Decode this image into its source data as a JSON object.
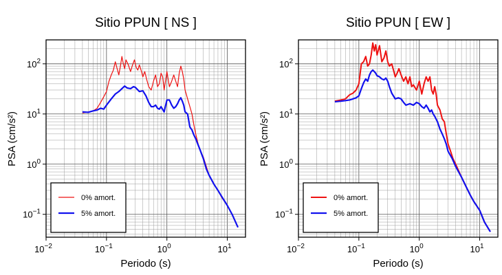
{
  "chart_data": [
    {
      "type": "line",
      "title": "Sitio PPUN [ NS ]",
      "xlabel": "Periodo (s)",
      "ylabel": "PSA (cm/s²)",
      "x_scale": "log",
      "y_scale": "log",
      "xlim": [
        0.01,
        20
      ],
      "ylim": [
        0.035,
        300
      ],
      "grid": true,
      "x_tick_labels": [
        {
          "value": 0.01,
          "base": "10",
          "exp": "−2"
        },
        {
          "value": 0.1,
          "base": "10",
          "exp": "−1"
        },
        {
          "value": 1,
          "base": "10",
          "exp": "0"
        },
        {
          "value": 10,
          "base": "10",
          "exp": "1"
        }
      ],
      "y_tick_labels": [
        {
          "value": 0.1,
          "base": "10",
          "exp": "−1"
        },
        {
          "value": 1,
          "base": "10",
          "exp": "0"
        },
        {
          "value": 10,
          "base": "10",
          "exp": "1"
        },
        {
          "value": 100,
          "base": "10",
          "exp": "2"
        }
      ],
      "legend_position": "bottom-left",
      "series": [
        {
          "name": "0% amort.",
          "color": "#ee1111",
          "stroke_width": 1.2,
          "points": [
            [
              0.04,
              10.5
            ],
            [
              0.05,
              11
            ],
            [
              0.06,
              11.5
            ],
            [
              0.07,
              13
            ],
            [
              0.08,
              17
            ],
            [
              0.09,
              22
            ],
            [
              0.1,
              28
            ],
            [
              0.11,
              45
            ],
            [
              0.12,
              60
            ],
            [
              0.13,
              75
            ],
            [
              0.14,
              110
            ],
            [
              0.15,
              80
            ],
            [
              0.16,
              60
            ],
            [
              0.17,
              90
            ],
            [
              0.18,
              140
            ],
            [
              0.19,
              100
            ],
            [
              0.2,
              80
            ],
            [
              0.21,
              120
            ],
            [
              0.23,
              95
            ],
            [
              0.25,
              70
            ],
            [
              0.27,
              95
            ],
            [
              0.29,
              120
            ],
            [
              0.31,
              85
            ],
            [
              0.33,
              75
            ],
            [
              0.35,
              95
            ],
            [
              0.38,
              70
            ],
            [
              0.4,
              55
            ],
            [
              0.43,
              70
            ],
            [
              0.46,
              50
            ],
            [
              0.5,
              35
            ],
            [
              0.55,
              30
            ],
            [
              0.6,
              45
            ],
            [
              0.65,
              60
            ],
            [
              0.7,
              35
            ],
            [
              0.75,
              40
            ],
            [
              0.8,
              65
            ],
            [
              0.85,
              55
            ],
            [
              0.9,
              30
            ],
            [
              1.0,
              70
            ],
            [
              1.1,
              35
            ],
            [
              1.2,
              45
            ],
            [
              1.3,
              60
            ],
            [
              1.4,
              45
            ],
            [
              1.5,
              35
            ],
            [
              1.6,
              65
            ],
            [
              1.7,
              90
            ],
            [
              1.8,
              70
            ],
            [
              1.9,
              50
            ],
            [
              2.0,
              30
            ],
            [
              2.2,
              20
            ],
            [
              2.4,
              14
            ],
            [
              2.6,
              10
            ],
            [
              2.8,
              6
            ],
            [
              3.0,
              4
            ],
            [
              3.3,
              2.5
            ],
            [
              3.6,
              1.8
            ],
            [
              4.0,
              1.4
            ],
            [
              5.0,
              0.6
            ],
            [
              6.0,
              0.4
            ],
            [
              7.0,
              0.3
            ],
            [
              8.0,
              0.22
            ],
            [
              10.0,
              0.15
            ],
            [
              12.0,
              0.1
            ],
            [
              15.0,
              0.055
            ]
          ]
        },
        {
          "name": "5% amort.",
          "color": "#1111ee",
          "stroke_width": 2.2,
          "points": [
            [
              0.04,
              11
            ],
            [
              0.05,
              10.8
            ],
            [
              0.06,
              11.5
            ],
            [
              0.07,
              12
            ],
            [
              0.08,
              13
            ],
            [
              0.09,
              12.5
            ],
            [
              0.1,
              15
            ],
            [
              0.12,
              20
            ],
            [
              0.14,
              25
            ],
            [
              0.16,
              28
            ],
            [
              0.18,
              32
            ],
            [
              0.2,
              36
            ],
            [
              0.22,
              33
            ],
            [
              0.25,
              32
            ],
            [
              0.28,
              35
            ],
            [
              0.3,
              34
            ],
            [
              0.35,
              28
            ],
            [
              0.4,
              29
            ],
            [
              0.45,
              23
            ],
            [
              0.5,
              17
            ],
            [
              0.55,
              14
            ],
            [
              0.6,
              14
            ],
            [
              0.65,
              15
            ],
            [
              0.7,
              13
            ],
            [
              0.75,
              12.5
            ],
            [
              0.8,
              14
            ],
            [
              0.9,
              11
            ],
            [
              1.0,
              19
            ],
            [
              1.1,
              19
            ],
            [
              1.2,
              15
            ],
            [
              1.3,
              13
            ],
            [
              1.4,
              14
            ],
            [
              1.5,
              16
            ],
            [
              1.6,
              19
            ],
            [
              1.7,
              21
            ],
            [
              1.8,
              18
            ],
            [
              1.9,
              15
            ],
            [
              2.0,
              11
            ],
            [
              2.2,
              10
            ],
            [
              2.4,
              5.5
            ],
            [
              2.6,
              4.8
            ],
            [
              2.8,
              3.8
            ],
            [
              3.0,
              3.2
            ],
            [
              3.5,
              2.0
            ],
            [
              4.0,
              1.3
            ],
            [
              4.5,
              0.8
            ],
            [
              5.0,
              0.6
            ],
            [
              6.0,
              0.4
            ],
            [
              7.0,
              0.3
            ],
            [
              8.0,
              0.23
            ],
            [
              10.0,
              0.15
            ],
            [
              12.0,
              0.1
            ],
            [
              15.0,
              0.055
            ]
          ]
        }
      ]
    },
    {
      "type": "line",
      "title": "Sitio PPUN [ EW ]",
      "xlabel": "Periodo (s)",
      "ylabel": "PSA (cm/s²)",
      "x_scale": "log",
      "y_scale": "log",
      "xlim": [
        0.01,
        20
      ],
      "ylim": [
        0.035,
        300
      ],
      "grid": true,
      "x_tick_labels": [
        {
          "value": 0.01,
          "base": "10",
          "exp": "−2"
        },
        {
          "value": 0.1,
          "base": "10",
          "exp": "−1"
        },
        {
          "value": 1,
          "base": "10",
          "exp": "0"
        },
        {
          "value": 10,
          "base": "10",
          "exp": "1"
        }
      ],
      "y_tick_labels": [
        {
          "value": 0.1,
          "base": "10",
          "exp": "−1"
        },
        {
          "value": 1,
          "base": "10",
          "exp": "0"
        },
        {
          "value": 10,
          "base": "10",
          "exp": "1"
        },
        {
          "value": 100,
          "base": "10",
          "exp": "2"
        }
      ],
      "legend_position": "bottom-left",
      "series": [
        {
          "name": "0% amort.",
          "color": "#ee1111",
          "stroke_width": 2.0,
          "points": [
            [
              0.04,
              18
            ],
            [
              0.05,
              19
            ],
            [
              0.06,
              20
            ],
            [
              0.07,
              24
            ],
            [
              0.08,
              26
            ],
            [
              0.09,
              30
            ],
            [
              0.1,
              40
            ],
            [
              0.11,
              100
            ],
            [
              0.12,
              110
            ],
            [
              0.13,
              140
            ],
            [
              0.14,
              90
            ],
            [
              0.15,
              100
            ],
            [
              0.16,
              150
            ],
            [
              0.17,
              260
            ],
            [
              0.18,
              180
            ],
            [
              0.19,
              240
            ],
            [
              0.2,
              150
            ],
            [
              0.22,
              230
            ],
            [
              0.24,
              110
            ],
            [
              0.26,
              130
            ],
            [
              0.28,
              180
            ],
            [
              0.3,
              110
            ],
            [
              0.32,
              90
            ],
            [
              0.35,
              100
            ],
            [
              0.38,
              70
            ],
            [
              0.4,
              55
            ],
            [
              0.43,
              65
            ],
            [
              0.46,
              80
            ],
            [
              0.5,
              60
            ],
            [
              0.55,
              45
            ],
            [
              0.6,
              55
            ],
            [
              0.65,
              40
            ],
            [
              0.7,
              55
            ],
            [
              0.75,
              35
            ],
            [
              0.8,
              38
            ],
            [
              0.9,
              30
            ],
            [
              1.0,
              45
            ],
            [
              1.1,
              25
            ],
            [
              1.2,
              40
            ],
            [
              1.3,
              55
            ],
            [
              1.4,
              45
            ],
            [
              1.5,
              55
            ],
            [
              1.6,
              30
            ],
            [
              1.7,
              25
            ],
            [
              1.8,
              35
            ],
            [
              1.9,
              25
            ],
            [
              2.0,
              15
            ],
            [
              2.2,
              12
            ],
            [
              2.4,
              8
            ],
            [
              2.6,
              7
            ],
            [
              2.8,
              4
            ],
            [
              3.0,
              2.5
            ],
            [
              3.3,
              1.8
            ],
            [
              3.6,
              1.3
            ],
            [
              4.0,
              1.0
            ],
            [
              5.0,
              0.55
            ],
            [
              6.0,
              0.35
            ],
            [
              7.0,
              0.24
            ],
            [
              8.0,
              0.18
            ],
            [
              10.0,
              0.12
            ],
            [
              12.0,
              0.07
            ],
            [
              15.0,
              0.045
            ]
          ]
        },
        {
          "name": "5% amort.",
          "color": "#1111ee",
          "stroke_width": 2.2,
          "points": [
            [
              0.04,
              17.5
            ],
            [
              0.05,
              18
            ],
            [
              0.06,
              18.5
            ],
            [
              0.07,
              19
            ],
            [
              0.08,
              20
            ],
            [
              0.09,
              21
            ],
            [
              0.1,
              23
            ],
            [
              0.11,
              32
            ],
            [
              0.12,
              42
            ],
            [
              0.13,
              50
            ],
            [
              0.14,
              45
            ],
            [
              0.15,
              60
            ],
            [
              0.16,
              70
            ],
            [
              0.17,
              75
            ],
            [
              0.18,
              70
            ],
            [
              0.19,
              65
            ],
            [
              0.2,
              58
            ],
            [
              0.22,
              55
            ],
            [
              0.24,
              50
            ],
            [
              0.26,
              48
            ],
            [
              0.28,
              52
            ],
            [
              0.3,
              45
            ],
            [
              0.32,
              35
            ],
            [
              0.35,
              26
            ],
            [
              0.4,
              20
            ],
            [
              0.45,
              21
            ],
            [
              0.5,
              20
            ],
            [
              0.55,
              17
            ],
            [
              0.6,
              15
            ],
            [
              0.7,
              16
            ],
            [
              0.8,
              15
            ],
            [
              0.9,
              17
            ],
            [
              1.0,
              16
            ],
            [
              1.1,
              14
            ],
            [
              1.2,
              13
            ],
            [
              1.3,
              15
            ],
            [
              1.4,
              13
            ],
            [
              1.5,
              11
            ],
            [
              1.6,
              12
            ],
            [
              1.7,
              10
            ],
            [
              1.8,
              9
            ],
            [
              2.0,
              7
            ],
            [
              2.2,
              5
            ],
            [
              2.4,
              4
            ],
            [
              2.6,
              3.2
            ],
            [
              2.8,
              2.5
            ],
            [
              3.0,
              1.8
            ],
            [
              3.5,
              1.3
            ],
            [
              4.0,
              0.9
            ],
            [
              5.0,
              0.55
            ],
            [
              6.0,
              0.35
            ],
            [
              7.0,
              0.24
            ],
            [
              8.0,
              0.18
            ],
            [
              10.0,
              0.12
            ],
            [
              12.0,
              0.07
            ],
            [
              15.0,
              0.045
            ]
          ]
        }
      ]
    }
  ]
}
